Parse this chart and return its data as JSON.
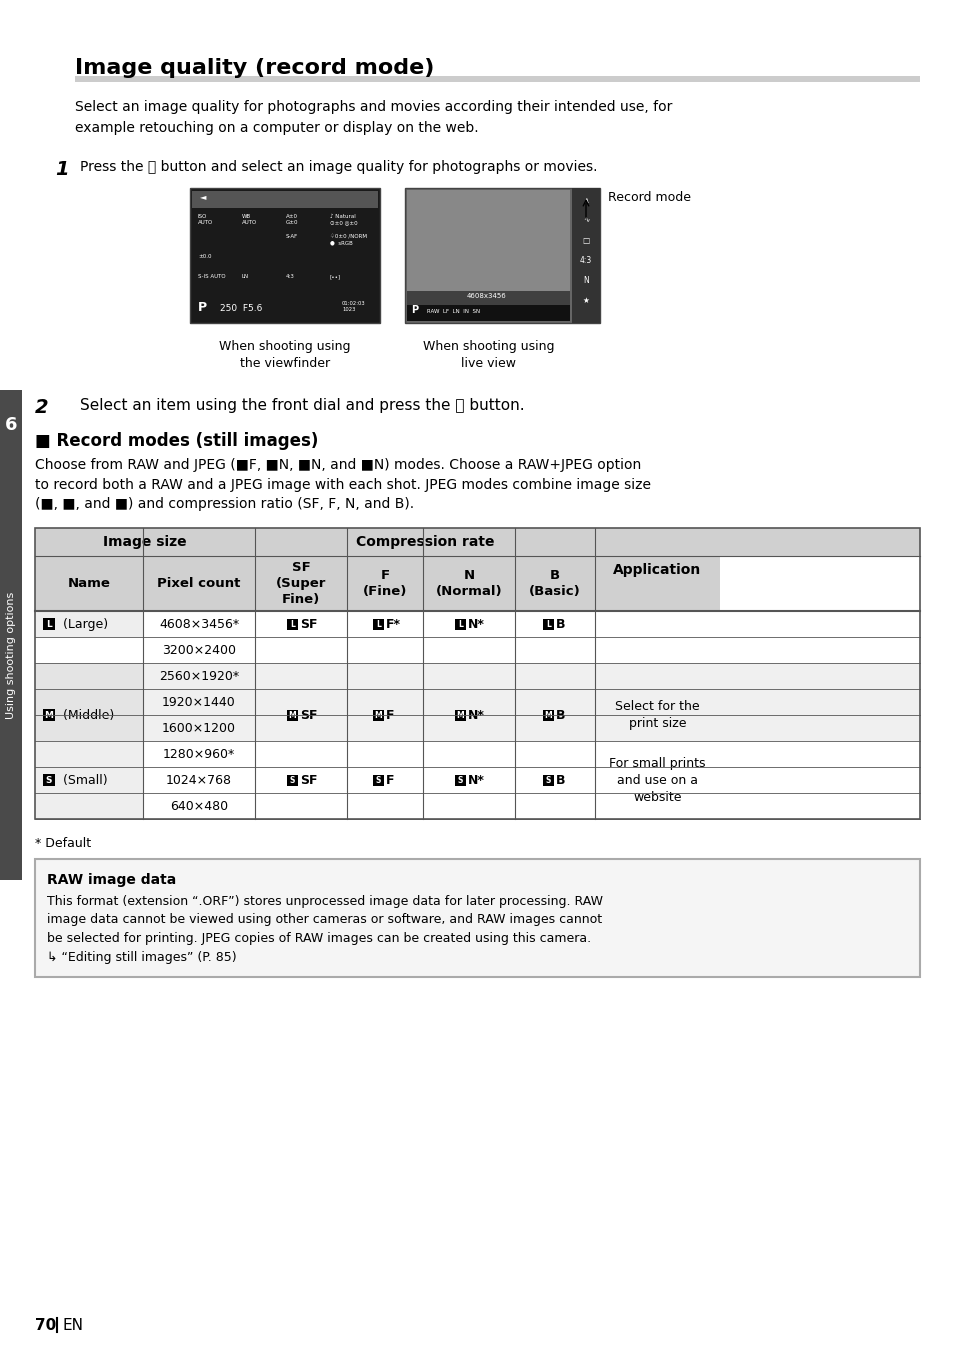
{
  "page_bg": "#ffffff",
  "title": "Image quality (record mode)",
  "intro_text": "Select an image quality for photographs and movies according their intended use, for\nexample retouching on a computer or display on the web.",
  "caption_left": "When shooting using\nthe viewfinder",
  "caption_right": "When shooting using\nlive view",
  "record_mode_label": "Record mode",
  "step2_text": "Select an item using the front dial and press the ⒪ button.",
  "section_title": "■ Record modes (still images)",
  "footnote": "* Default",
  "raw_box_title": "RAW image data",
  "raw_box_text": "This format (extension “.ORF”) stores unprocessed image data for later processing. RAW\nimage data cannot be viewed using other cameras or software, and RAW images cannot\nbe selected for printing. JPEG copies of RAW images can be created using this camera.\n↳ “Editing still images” (P. 85)",
  "page_number": "70",
  "side_label": "Using shooting options",
  "side_tab": "6",
  "sidebar_bg": "#4a4a4a",
  "table_header_bg": "#d0d0d0",
  "table_alt_bg": "#f0f0f0",
  "raw_box_bg": "#f5f5f5",
  "raw_box_border": "#aaaaaa",
  "simple_rows": [
    [
      "L (Large)",
      "4608×3456*",
      "LSF",
      "LF*",
      "LN*",
      "LB",
      "#ffffff"
    ],
    [
      "",
      "3200×2400",
      "",
      "",
      "",
      "",
      "#ffffff"
    ],
    [
      "M (Middle)",
      "2560×1920*",
      "MSF",
      "MF",
      "MN*",
      "MB",
      "#f0f0f0"
    ],
    [
      "",
      "1920×1440",
      "",
      "",
      "",
      "",
      "#f0f0f0"
    ],
    [
      "",
      "1600×1200",
      "",
      "",
      "",
      "",
      "#f0f0f0"
    ],
    [
      "",
      "1280×960*",
      "",
      "",
      "",
      "",
      "#ffffff"
    ],
    [
      "S (Small)",
      "1024×768",
      "SSF",
      "SF",
      "SN*",
      "SB",
      "#ffffff"
    ],
    [
      "",
      "640×480",
      "",
      "",
      "",
      "",
      "#ffffff"
    ]
  ],
  "merged_groups": [
    [
      0,
      1,
      "L (Large)",
      "LSF",
      "LF*",
      "LN*",
      "LB"
    ],
    [
      2,
      4,
      "M (Middle)",
      "MSF",
      "MF",
      "MN*",
      "MB"
    ],
    [
      5,
      3,
      "S (Small)",
      "SSF",
      "SF",
      "SN*",
      "SB"
    ]
  ],
  "app_spans": [
    [
      0,
      2,
      ""
    ],
    [
      2,
      4,
      "Select for the\nprint size"
    ],
    [
      5,
      3,
      "For small prints\nand use on a\nwebsite"
    ]
  ]
}
